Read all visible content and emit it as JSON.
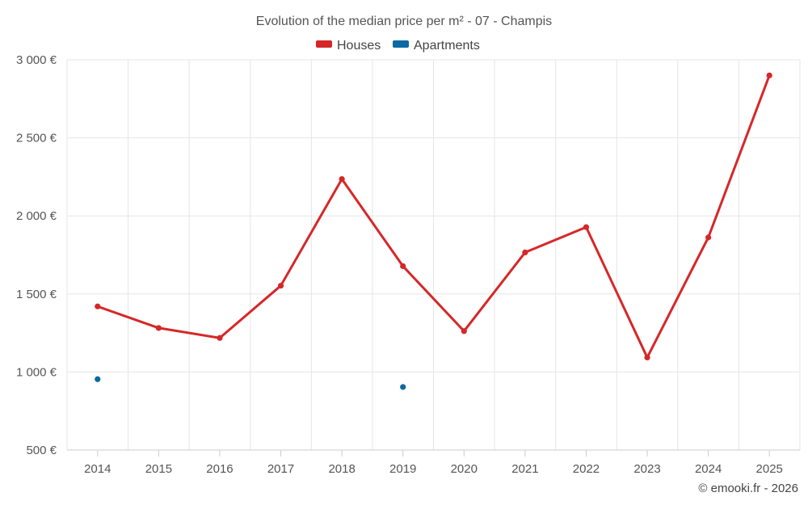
{
  "chart_data": {
    "type": "line",
    "title": "Evolution of the median price per m² - 07 - Champis",
    "categories": [
      "2014",
      "2015",
      "2016",
      "2017",
      "2018",
      "2019",
      "2020",
      "2021",
      "2022",
      "2023",
      "2024",
      "2025"
    ],
    "series": [
      {
        "name": "Houses",
        "color": "#d62728",
        "values": [
          1420,
          1282,
          1218,
          1553,
          2236,
          1678,
          1262,
          1766,
          1928,
          1093,
          1862,
          2900
        ]
      },
      {
        "name": "Apartments",
        "color": "#0b69a3",
        "values": [
          954,
          null,
          null,
          null,
          null,
          904,
          null,
          null,
          null,
          null,
          null,
          null
        ]
      }
    ],
    "ylim": [
      500,
      3000
    ],
    "yticks": [
      500,
      1000,
      1500,
      2000,
      2500,
      3000
    ],
    "ytick_labels": [
      "500 €",
      "1 000 €",
      "1 500 €",
      "2 000 €",
      "2 500 €",
      "3 000 €"
    ],
    "xlabel": "",
    "ylabel": "",
    "grid": true,
    "legend_position": "top-center"
  },
  "credit": "© emooki.fr - 2026"
}
